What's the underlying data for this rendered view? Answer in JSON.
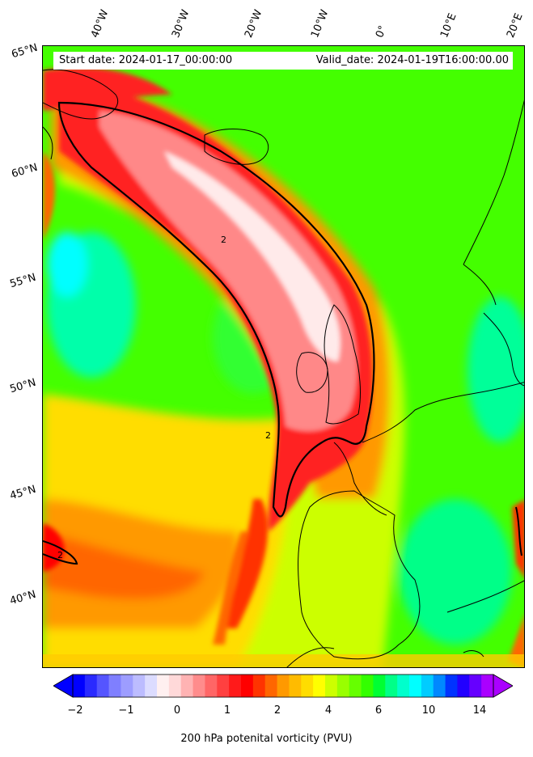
{
  "header": {
    "start_date": "Start date: 2024-01-17_00:00:00",
    "valid_date": "Valid_date: 2024-01-19T16:00:00.00"
  },
  "axes": {
    "longitudes": [
      "40°W",
      "30°W",
      "20°W",
      "10°W",
      "0°",
      "10°E",
      "20°E"
    ],
    "latitudes": [
      "65°N",
      "60°N",
      "55°N",
      "50°N",
      "45°N",
      "40°N"
    ]
  },
  "contour": {
    "label": "2"
  },
  "colorbar": {
    "label": "200 hPa potenital vorticity (PVU)",
    "ticks": [
      "−2",
      "−1",
      "0",
      "1",
      "2",
      "4",
      "6",
      "10",
      "14"
    ],
    "colors": [
      "#0000ff",
      "#2a2aff",
      "#5555ff",
      "#7f7fff",
      "#9d9dff",
      "#bcbcff",
      "#dcdcff",
      "#fff0f0",
      "#ffd9d9",
      "#ffb3b3",
      "#ff8c8c",
      "#ff6666",
      "#ff4040",
      "#ff1a1a",
      "#ff0000",
      "#ff3300",
      "#ff6600",
      "#ff9900",
      "#ffbb00",
      "#ffdd00",
      "#ffff00",
      "#ccff00",
      "#99ff00",
      "#66ff00",
      "#33ff00",
      "#00ff33",
      "#00ff88",
      "#00ffcc",
      "#00ffff",
      "#00ccff",
      "#0088ff",
      "#0033ff",
      "#2200ff",
      "#6600ff",
      "#aa00ff"
    ]
  }
}
